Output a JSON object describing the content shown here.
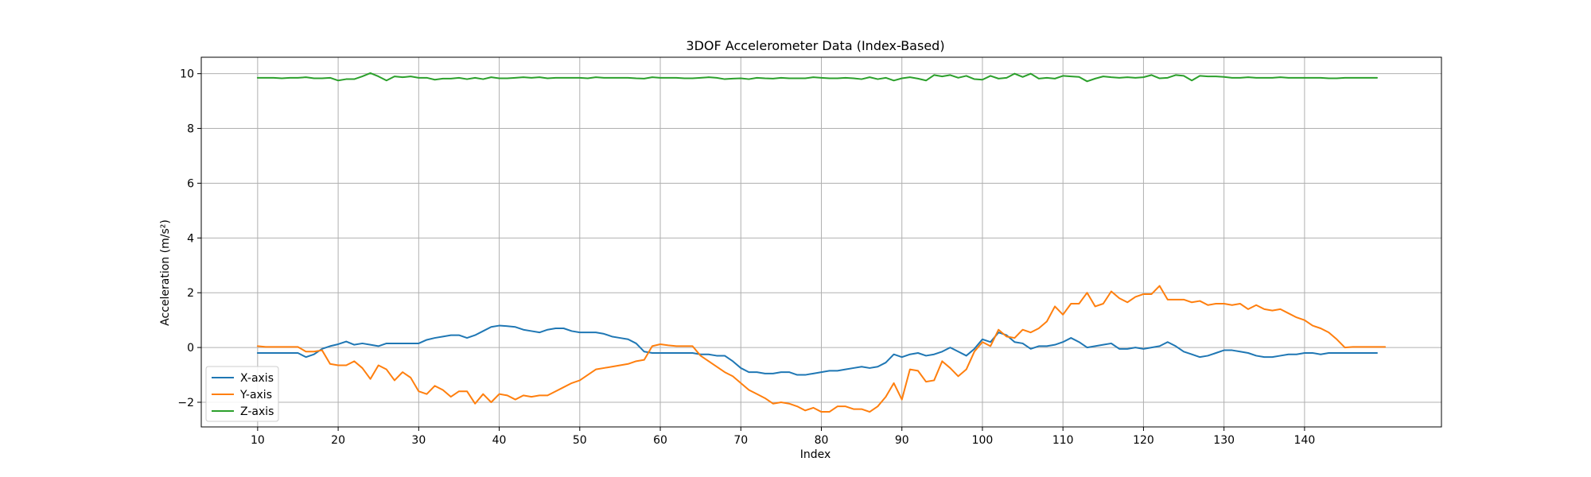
{
  "chart_data": {
    "type": "line",
    "title": "3DOF Accelerometer Data (Index-Based)",
    "xlabel": "Index",
    "ylabel": "Acceleration (m/s²)",
    "xlim": [
      3,
      157
    ],
    "ylim": [
      -2.9,
      10.6
    ],
    "xticks": [
      10,
      20,
      30,
      40,
      50,
      60,
      70,
      80,
      90,
      100,
      110,
      120,
      130,
      140
    ],
    "yticks": [
      -2,
      0,
      2,
      4,
      6,
      8,
      10
    ],
    "grid": true,
    "legend_position": "lower-left",
    "x_start": 10,
    "series": [
      {
        "name": "X-axis",
        "color": "#1f77b4",
        "values": [
          -0.2,
          -0.2,
          -0.2,
          -0.2,
          -0.2,
          -0.2,
          -0.35,
          -0.25,
          -0.05,
          0.05,
          0.12,
          0.22,
          0.1,
          0.15,
          0.1,
          0.05,
          0.15,
          0.15,
          0.15,
          0.15,
          0.15,
          0.28,
          0.35,
          0.4,
          0.45,
          0.45,
          0.35,
          0.45,
          0.6,
          0.75,
          0.8,
          0.78,
          0.75,
          0.65,
          0.6,
          0.55,
          0.65,
          0.7,
          0.7,
          0.6,
          0.55,
          0.55,
          0.55,
          0.5,
          0.4,
          0.35,
          0.3,
          0.15,
          -0.15,
          -0.2,
          -0.2,
          -0.2,
          -0.2,
          -0.2,
          -0.2,
          -0.25,
          -0.25,
          -0.3,
          -0.3,
          -0.5,
          -0.75,
          -0.9,
          -0.9,
          -0.95,
          -0.95,
          -0.9,
          -0.9,
          -1.0,
          -1.0,
          -0.95,
          -0.9,
          -0.85,
          -0.85,
          -0.8,
          -0.75,
          -0.7,
          -0.75,
          -0.7,
          -0.55,
          -0.25,
          -0.35,
          -0.25,
          -0.2,
          -0.3,
          -0.25,
          -0.15,
          0.0,
          -0.15,
          -0.3,
          -0.05,
          0.3,
          0.2,
          0.55,
          0.45,
          0.2,
          0.15,
          -0.05,
          0.05,
          0.05,
          0.1,
          0.2,
          0.35,
          0.2,
          0.0,
          0.05,
          0.1,
          0.15,
          -0.05,
          -0.05,
          0.0,
          -0.05,
          0.0,
          0.05,
          0.2,
          0.05,
          -0.15,
          -0.25,
          -0.35,
          -0.3,
          -0.2,
          -0.1,
          -0.1,
          -0.15,
          -0.2,
          -0.3,
          -0.35,
          -0.35,
          -0.3,
          -0.25,
          -0.25,
          -0.2,
          -0.2,
          -0.25,
          -0.2,
          -0.2,
          -0.2,
          -0.2,
          -0.2,
          -0.2,
          -0.2
        ]
      },
      {
        "name": "Y-axis",
        "color": "#ff7f0e",
        "values": [
          0.05,
          0.02,
          0.02,
          0.02,
          0.02,
          0.02,
          -0.15,
          -0.15,
          -0.1,
          -0.6,
          -0.65,
          -0.65,
          -0.5,
          -0.75,
          -1.15,
          -0.65,
          -0.8,
          -1.2,
          -0.9,
          -1.1,
          -1.6,
          -1.7,
          -1.4,
          -1.55,
          -1.8,
          -1.6,
          -1.6,
          -2.05,
          -1.7,
          -2.0,
          -1.7,
          -1.75,
          -1.9,
          -1.75,
          -1.8,
          -1.75,
          -1.75,
          -1.6,
          -1.45,
          -1.3,
          -1.2,
          -1.0,
          -0.8,
          -0.75,
          -0.7,
          -0.65,
          -0.6,
          -0.5,
          -0.45,
          0.05,
          0.12,
          0.08,
          0.05,
          0.05,
          0.05,
          -0.3,
          -0.5,
          -0.7,
          -0.9,
          -1.05,
          -1.3,
          -1.55,
          -1.7,
          -1.85,
          -2.05,
          -2.0,
          -2.05,
          -2.15,
          -2.3,
          -2.2,
          -2.35,
          -2.35,
          -2.15,
          -2.15,
          -2.25,
          -2.25,
          -2.35,
          -2.15,
          -1.8,
          -1.3,
          -1.9,
          -0.8,
          -0.85,
          -1.25,
          -1.2,
          -0.5,
          -0.75,
          -1.05,
          -0.8,
          -0.15,
          0.2,
          0.05,
          0.65,
          0.4,
          0.35,
          0.65,
          0.55,
          0.7,
          0.95,
          1.5,
          1.2,
          1.6,
          1.6,
          2.0,
          1.5,
          1.6,
          2.05,
          1.8,
          1.65,
          1.85,
          1.95,
          1.95,
          2.25,
          1.75,
          1.75,
          1.75,
          1.65,
          1.7,
          1.55,
          1.6,
          1.6,
          1.55,
          1.6,
          1.4,
          1.55,
          1.4,
          1.35,
          1.4,
          1.25,
          1.1,
          1.0,
          0.8,
          0.7,
          0.55,
          0.3,
          0.0,
          0.02,
          0.02,
          0.02,
          0.02,
          0.02
        ]
      },
      {
        "name": "Z-axis",
        "color": "#2ca02c",
        "values": [
          9.85,
          9.85,
          9.85,
          9.83,
          9.85,
          9.85,
          9.87,
          9.83,
          9.83,
          9.85,
          9.75,
          9.8,
          9.8,
          9.9,
          10.02,
          9.9,
          9.75,
          9.9,
          9.87,
          9.9,
          9.85,
          9.85,
          9.78,
          9.82,
          9.82,
          9.85,
          9.8,
          9.85,
          9.8,
          9.87,
          9.83,
          9.83,
          9.85,
          9.87,
          9.85,
          9.87,
          9.83,
          9.85,
          9.85,
          9.85,
          9.85,
          9.83,
          9.87,
          9.85,
          9.85,
          9.85,
          9.85,
          9.83,
          9.82,
          9.87,
          9.85,
          9.85,
          9.85,
          9.83,
          9.83,
          9.85,
          9.87,
          9.85,
          9.8,
          9.82,
          9.83,
          9.8,
          9.85,
          9.83,
          9.82,
          9.85,
          9.83,
          9.83,
          9.83,
          9.87,
          9.85,
          9.83,
          9.83,
          9.85,
          9.83,
          9.8,
          9.87,
          9.8,
          9.85,
          9.75,
          9.83,
          9.87,
          9.82,
          9.75,
          9.95,
          9.9,
          9.95,
          9.85,
          9.92,
          9.8,
          9.78,
          9.92,
          9.82,
          9.85,
          10.0,
          9.88,
          10.0,
          9.82,
          9.85,
          9.82,
          9.92,
          9.9,
          9.88,
          9.72,
          9.82,
          9.9,
          9.87,
          9.85,
          9.87,
          9.85,
          9.87,
          9.95,
          9.83,
          9.85,
          9.95,
          9.92,
          9.75,
          9.92,
          9.9,
          9.9,
          9.88,
          9.85,
          9.85,
          9.87,
          9.85,
          9.85,
          9.85,
          9.87,
          9.85,
          9.85,
          9.85,
          9.85,
          9.85,
          9.83,
          9.83,
          9.85,
          9.85,
          9.85,
          9.85,
          9.85
        ]
      }
    ]
  }
}
